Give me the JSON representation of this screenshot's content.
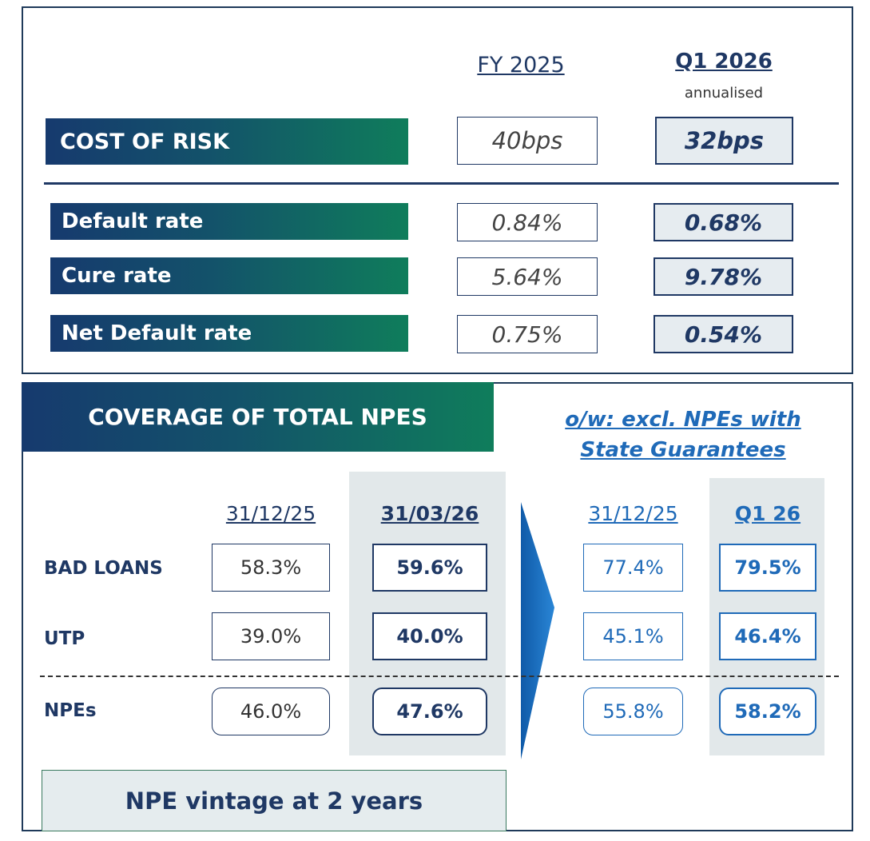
{
  "risk": {
    "headers": {
      "fy": "FY 2025",
      "q1": "Q1 2026",
      "q1_note": "annualised"
    },
    "cost_of_risk": {
      "label": "COST OF RISK",
      "fy": "40bps",
      "q1": "32bps"
    },
    "rows": [
      {
        "label": "Default rate",
        "fy": "0.84%",
        "q1": "0.68%"
      },
      {
        "label": "Cure rate",
        "fy": "5.64%",
        "q1": "9.78%"
      },
      {
        "label": "Net Default rate",
        "fy": "0.75%",
        "q1": "0.54%"
      }
    ]
  },
  "coverage": {
    "title": "COVERAGE OF TOTAL NPES",
    "note": "o/w: excl. NPEs with State Guarantees",
    "columns": [
      "31/12/25",
      "31/03/26",
      "31/12/25",
      "Q1 26"
    ],
    "rows": [
      {
        "label": "BAD LOANS",
        "values": [
          "58.3%",
          "59.6%",
          "77.4%",
          "79.5%"
        ]
      },
      {
        "label": "UTP",
        "values": [
          "39.0%",
          "40.0%",
          "45.1%",
          "46.4%"
        ]
      },
      {
        "label": "NPEs",
        "values": [
          "46.0%",
          "47.6%",
          "55.8%",
          "58.2%"
        ]
      }
    ],
    "footer": "NPE vintage at 2 years"
  }
}
